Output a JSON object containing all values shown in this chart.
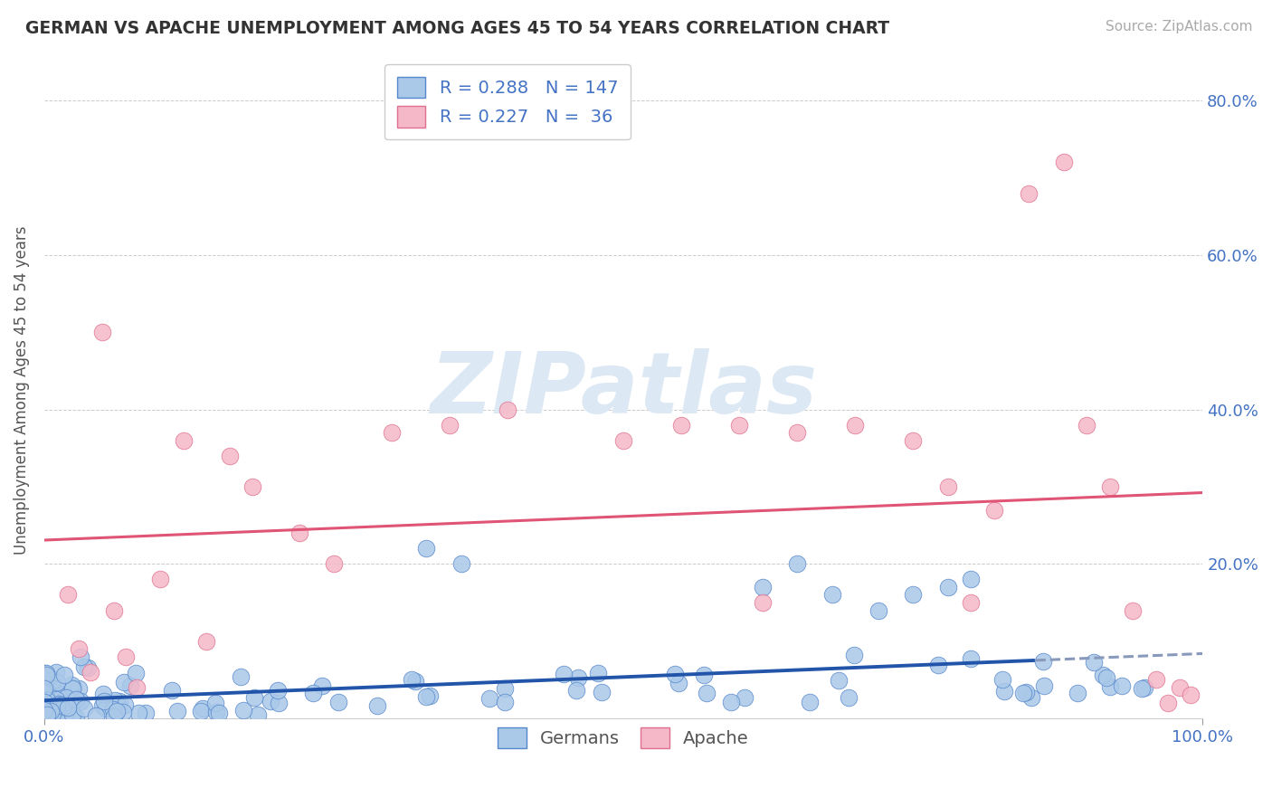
{
  "title": "GERMAN VS APACHE UNEMPLOYMENT AMONG AGES 45 TO 54 YEARS CORRELATION CHART",
  "source": "Source: ZipAtlas.com",
  "ylabel": "Unemployment Among Ages 45 to 54 years",
  "german_color_fill": "#aac8e8",
  "german_color_edge": "#5588cc",
  "apache_color_fill": "#f5b8c8",
  "apache_color_edge": "#e07090",
  "german_line_color": "#2255aa",
  "german_dash_color": "#8899bb",
  "apache_line_color": "#e05575",
  "grid_color": "#cccccc",
  "tick_color": "#4472c4",
  "title_color": "#333333",
  "source_color": "#aaaaaa",
  "watermark_color": "#dde8f5",
  "german_R": 0.288,
  "german_N": 147,
  "apache_R": 0.227,
  "apache_N": 36,
  "xlim": [
    0.0,
    1.0
  ],
  "ylim": [
    0.0,
    0.85
  ],
  "seed": 42,
  "apache_points_x": [
    0.02,
    0.03,
    0.04,
    0.05,
    0.06,
    0.07,
    0.08,
    0.1,
    0.12,
    0.14,
    0.16,
    0.18,
    0.22,
    0.25,
    0.3,
    0.35,
    0.4,
    0.5,
    0.55,
    0.6,
    0.62,
    0.65,
    0.7,
    0.75,
    0.78,
    0.8,
    0.82,
    0.85,
    0.88,
    0.9,
    0.92,
    0.94,
    0.96,
    0.97,
    0.98,
    0.99
  ],
  "apache_points_y": [
    0.16,
    0.09,
    0.06,
    0.5,
    0.14,
    0.08,
    0.04,
    0.18,
    0.36,
    0.1,
    0.34,
    0.3,
    0.24,
    0.2,
    0.37,
    0.38,
    0.4,
    0.36,
    0.38,
    0.38,
    0.15,
    0.37,
    0.38,
    0.36,
    0.3,
    0.15,
    0.27,
    0.68,
    0.72,
    0.38,
    0.3,
    0.14,
    0.05,
    0.02,
    0.04,
    0.03
  ]
}
